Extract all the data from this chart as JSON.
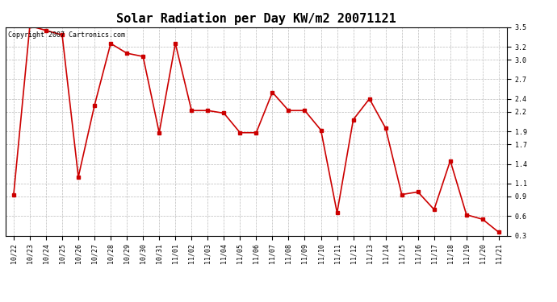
{
  "title": "Solar Radiation per Day KW/m2 20071121",
  "copyright_text": "Copyright 2007 Cartronics.com",
  "labels": [
    "10/22",
    "10/23",
    "10/24",
    "10/25",
    "10/26",
    "10/27",
    "10/28",
    "10/29",
    "10/30",
    "10/31",
    "11/01",
    "11/02",
    "11/03",
    "11/04",
    "11/05",
    "11/06",
    "11/07",
    "11/08",
    "11/09",
    "11/10",
    "11/11",
    "11/12",
    "11/13",
    "11/14",
    "11/15",
    "11/16",
    "11/17",
    "11/18",
    "11/19",
    "11/20",
    "11/21"
  ],
  "values": [
    0.93,
    3.52,
    3.45,
    3.38,
    1.2,
    2.3,
    3.25,
    3.1,
    3.05,
    1.88,
    3.25,
    2.22,
    2.22,
    2.18,
    1.88,
    1.88,
    2.5,
    2.22,
    2.22,
    1.92,
    0.65,
    2.08,
    2.4,
    1.95,
    0.93,
    0.97,
    0.7,
    1.45,
    0.62,
    0.55,
    0.35
  ],
  "line_color": "#cc0000",
  "marker": "s",
  "marker_size": 2.5,
  "line_width": 1.2,
  "ylim_min": 0.3,
  "ylim_max": 3.5,
  "yticks": [
    0.3,
    0.6,
    0.9,
    1.1,
    1.4,
    1.7,
    1.9,
    2.2,
    2.4,
    2.7,
    3.0,
    3.2,
    3.5
  ],
  "background_color": "#ffffff",
  "grid_color": "#bbbbbb",
  "title_fontsize": 11,
  "tick_fontsize": 6,
  "copyright_fontsize": 6,
  "fig_width": 6.9,
  "fig_height": 3.75,
  "dpi": 100
}
